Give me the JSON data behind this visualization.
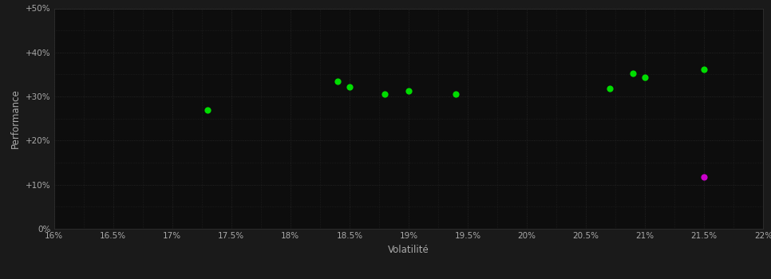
{
  "xlabel": "Volatilité",
  "ylabel": "Performance",
  "background_color": "#1a1a1a",
  "plot_bg_color": "#0d0d0d",
  "grid_color": "#2a2a2a",
  "text_color": "#ffffff",
  "tick_color": "#aaaaaa",
  "xlim": [
    0.16,
    0.22
  ],
  "ylim": [
    0.0,
    0.5
  ],
  "xticks": [
    0.16,
    0.165,
    0.17,
    0.175,
    0.18,
    0.185,
    0.19,
    0.195,
    0.2,
    0.205,
    0.21,
    0.215,
    0.22
  ],
  "xtick_labels": [
    "16%",
    "16.5%",
    "17%",
    "17.5%",
    "18%",
    "18.5%",
    "19%",
    "19.5%",
    "20%",
    "20.5%",
    "21%",
    "21.5%",
    "22%"
  ],
  "yticks": [
    0.0,
    0.1,
    0.2,
    0.3,
    0.4,
    0.5
  ],
  "ytick_labels": [
    "0%",
    "+10%",
    "+20%",
    "+30%",
    "+40%",
    "+50%"
  ],
  "green_points": [
    [
      0.173,
      0.27
    ],
    [
      0.184,
      0.335
    ],
    [
      0.185,
      0.322
    ],
    [
      0.188,
      0.305
    ],
    [
      0.19,
      0.313
    ],
    [
      0.194,
      0.305
    ],
    [
      0.207,
      0.318
    ],
    [
      0.209,
      0.352
    ],
    [
      0.21,
      0.343
    ],
    [
      0.215,
      0.362
    ]
  ],
  "magenta_points": [
    [
      0.215,
      0.118
    ]
  ],
  "green_color": "#00dd00",
  "magenta_color": "#cc00cc",
  "marker_size": 35,
  "minor_grid_count": 4
}
